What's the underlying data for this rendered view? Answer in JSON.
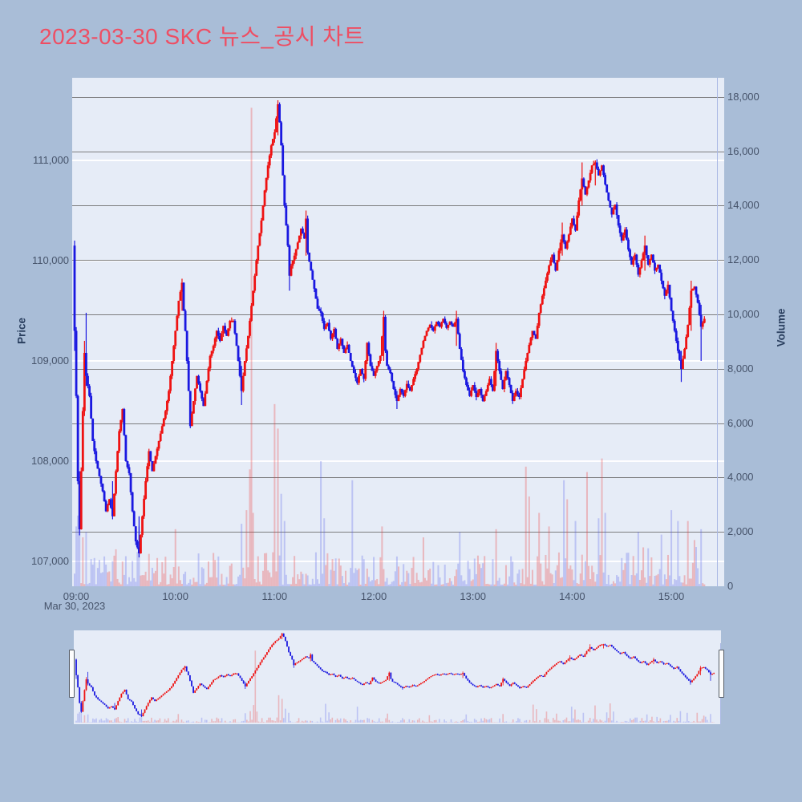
{
  "page": {
    "background_color": "#a9bdd7",
    "plot_background_color": "#e6ecf7",
    "title": "2023-03-30 SKC 뉴스_공시 차트",
    "title_color": "#ee4e63",
    "tick_label_color": "#46536a",
    "axis_title_color": "#2a3f5f"
  },
  "chart_data": {
    "type": "candlestick",
    "title": "2023-03-30 SKC 뉴스_공시 차트",
    "legend_position": "none",
    "grid": {
      "price_lines": "white",
      "volume_lines": "gray"
    },
    "price_axis": {
      "label": "Price",
      "ticks": [
        {
          "label": "111,000",
          "value": 111000
        },
        {
          "label": "110,000",
          "value": 110000
        },
        {
          "label": "109,000",
          "value": 109000
        },
        {
          "label": "108,000",
          "value": 108000
        },
        {
          "label": "107,000",
          "value": 107000
        }
      ],
      "range_shown": [
        106800,
        111840
      ]
    },
    "volume_axis": {
      "label": "Volume",
      "ticks": [
        {
          "label": "18,000",
          "value": 18000
        },
        {
          "label": "16,000",
          "value": 16000
        },
        {
          "label": "14,000",
          "value": 14000
        },
        {
          "label": "12,000",
          "value": 12000
        },
        {
          "label": "10,000",
          "value": 10000
        },
        {
          "label": "8,000",
          "value": 8000
        },
        {
          "label": "6,000",
          "value": 6000
        },
        {
          "label": "4,000",
          "value": 4000
        },
        {
          "label": "2,000",
          "value": 2000
        },
        {
          "label": "0",
          "value": 0
        }
      ],
      "range": [
        0,
        18000
      ]
    },
    "time_axis": {
      "date_label": "Mar 30, 2023",
      "ticks": [
        {
          "label": "09:00",
          "minute": 0
        },
        {
          "label": "10:00",
          "minute": 60
        },
        {
          "label": "11:00",
          "minute": 120
        },
        {
          "label": "12:00",
          "minute": 180
        },
        {
          "label": "13:00",
          "minute": 240
        },
        {
          "label": "14:00",
          "minute": 300
        },
        {
          "label": "15:00",
          "minute": 360
        }
      ],
      "minutes_total": 382
    },
    "colors": {
      "up_candle": "#ee1212",
      "down_candle": "#1a18e0",
      "up_volume": "rgba(238,60,60,0.30)",
      "down_volume": "rgba(80,90,235,0.28)",
      "grid_gray": "rgba(105,105,105,0.85)",
      "grid_white": "rgba(255,255,255,0.95)",
      "axis_line_light": "rgba(168,182,228,0.95)"
    },
    "open_price": 110150,
    "close_anchors": [
      [
        0,
        109300
      ],
      [
        1,
        108650
      ],
      [
        2,
        107800
      ],
      [
        3,
        107320
      ],
      [
        4,
        107900
      ],
      [
        5,
        108500
      ],
      [
        6,
        109080
      ],
      [
        7,
        108850
      ],
      [
        9,
        108650
      ],
      [
        11,
        108200
      ],
      [
        13,
        108000
      ],
      [
        15,
        107850
      ],
      [
        17,
        107700
      ],
      [
        19,
        107500
      ],
      [
        21,
        107620
      ],
      [
        23,
        107450
      ],
      [
        25,
        107900
      ],
      [
        27,
        108300
      ],
      [
        29,
        108520
      ],
      [
        31,
        108000
      ],
      [
        33,
        107880
      ],
      [
        35,
        107500
      ],
      [
        37,
        107200
      ],
      [
        39,
        107080
      ],
      [
        41,
        107450
      ],
      [
        43,
        107800
      ],
      [
        45,
        108100
      ],
      [
        47,
        107900
      ],
      [
        49,
        108050
      ],
      [
        51,
        108200
      ],
      [
        53,
        108350
      ],
      [
        55,
        108500
      ],
      [
        57,
        108700
      ],
      [
        59,
        109000
      ],
      [
        61,
        109300
      ],
      [
        63,
        109600
      ],
      [
        65,
        109780
      ],
      [
        66,
        109500
      ],
      [
        67,
        109300
      ],
      [
        68,
        109000
      ],
      [
        69,
        108700
      ],
      [
        70,
        108350
      ],
      [
        72,
        108600
      ],
      [
        74,
        108850
      ],
      [
        76,
        108700
      ],
      [
        78,
        108550
      ],
      [
        80,
        108800
      ],
      [
        82,
        109050
      ],
      [
        84,
        109150
      ],
      [
        86,
        109300
      ],
      [
        88,
        109200
      ],
      [
        90,
        109350
      ],
      [
        92,
        109250
      ],
      [
        94,
        109400
      ],
      [
        96,
        109400
      ],
      [
        98,
        109150
      ],
      [
        100,
        108850
      ],
      [
        101,
        108700
      ],
      [
        103,
        109000
      ],
      [
        105,
        109250
      ],
      [
        107,
        109550
      ],
      [
        109,
        109850
      ],
      [
        111,
        110150
      ],
      [
        113,
        110400
      ],
      [
        115,
        110700
      ],
      [
        117,
        110950
      ],
      [
        119,
        111150
      ],
      [
        121,
        111280
      ],
      [
        123,
        111560
      ],
      [
        124,
        111380
      ],
      [
        125,
        111150
      ],
      [
        126,
        110850
      ],
      [
        127,
        110550
      ],
      [
        129,
        110150
      ],
      [
        130,
        109850
      ],
      [
        131,
        109950
      ],
      [
        133,
        110050
      ],
      [
        135,
        110180
      ],
      [
        137,
        110320
      ],
      [
        139,
        110220
      ],
      [
        140,
        110420
      ],
      [
        141,
        110080
      ],
      [
        143,
        109900
      ],
      [
        145,
        109720
      ],
      [
        147,
        109520
      ],
      [
        149,
        109480
      ],
      [
        151,
        109320
      ],
      [
        153,
        109380
      ],
      [
        155,
        109220
      ],
      [
        157,
        109320
      ],
      [
        159,
        109120
      ],
      [
        161,
        109220
      ],
      [
        163,
        109080
      ],
      [
        165,
        109160
      ],
      [
        167,
        109000
      ],
      [
        169,
        108880
      ],
      [
        171,
        108780
      ],
      [
        173,
        108920
      ],
      [
        175,
        108820
      ],
      [
        177,
        109180
      ],
      [
        179,
        108950
      ],
      [
        181,
        108850
      ],
      [
        183,
        108950
      ],
      [
        185,
        109050
      ],
      [
        187,
        109440
      ],
      [
        188,
        109100
      ],
      [
        189,
        108950
      ],
      [
        191,
        108880
      ],
      [
        193,
        108720
      ],
      [
        195,
        108600
      ],
      [
        197,
        108720
      ],
      [
        199,
        108650
      ],
      [
        201,
        108770
      ],
      [
        203,
        108700
      ],
      [
        205,
        108820
      ],
      [
        207,
        108920
      ],
      [
        209,
        109060
      ],
      [
        211,
        109200
      ],
      [
        213,
        109300
      ],
      [
        215,
        109360
      ],
      [
        217,
        109300
      ],
      [
        219,
        109390
      ],
      [
        221,
        109340
      ],
      [
        223,
        109420
      ],
      [
        225,
        109330
      ],
      [
        227,
        109390
      ],
      [
        229,
        109340
      ],
      [
        231,
        109420
      ],
      [
        233,
        109120
      ],
      [
        235,
        108900
      ],
      [
        237,
        108760
      ],
      [
        239,
        108650
      ],
      [
        241,
        108760
      ],
      [
        243,
        108640
      ],
      [
        245,
        108720
      ],
      [
        247,
        108600
      ],
      [
        249,
        108700
      ],
      [
        251,
        108820
      ],
      [
        253,
        108700
      ],
      [
        255,
        109100
      ],
      [
        257,
        108900
      ],
      [
        259,
        108720
      ],
      [
        261,
        108900
      ],
      [
        263,
        108760
      ],
      [
        265,
        108600
      ],
      [
        267,
        108700
      ],
      [
        269,
        108640
      ],
      [
        271,
        108820
      ],
      [
        273,
        109000
      ],
      [
        275,
        109160
      ],
      [
        277,
        109300
      ],
      [
        279,
        109220
      ],
      [
        281,
        109480
      ],
      [
        283,
        109650
      ],
      [
        285,
        109800
      ],
      [
        287,
        109950
      ],
      [
        289,
        110060
      ],
      [
        291,
        109900
      ],
      [
        293,
        110100
      ],
      [
        295,
        110260
      ],
      [
        297,
        110120
      ],
      [
        299,
        110260
      ],
      [
        301,
        110420
      ],
      [
        303,
        110300
      ],
      [
        305,
        110600
      ],
      [
        307,
        110820
      ],
      [
        309,
        110660
      ],
      [
        311,
        110800
      ],
      [
        313,
        110950
      ],
      [
        315,
        110980
      ],
      [
        317,
        110850
      ],
      [
        319,
        110950
      ],
      [
        321,
        110760
      ],
      [
        323,
        110600
      ],
      [
        325,
        110460
      ],
      [
        327,
        110560
      ],
      [
        329,
        110350
      ],
      [
        331,
        110200
      ],
      [
        333,
        110310
      ],
      [
        335,
        110110
      ],
      [
        337,
        109960
      ],
      [
        339,
        110060
      ],
      [
        341,
        109860
      ],
      [
        343,
        110000
      ],
      [
        345,
        110150
      ],
      [
        347,
        109960
      ],
      [
        349,
        110060
      ],
      [
        351,
        109900
      ],
      [
        353,
        109960
      ],
      [
        355,
        109800
      ],
      [
        357,
        109650
      ],
      [
        359,
        109760
      ],
      [
        361,
        109500
      ],
      [
        363,
        109300
      ],
      [
        365,
        109100
      ],
      [
        367,
        108920
      ],
      [
        369,
        109120
      ],
      [
        371,
        109360
      ],
      [
        373,
        109700
      ],
      [
        375,
        109740
      ],
      [
        377,
        109580
      ],
      [
        379,
        109340
      ],
      [
        381,
        109420
      ]
    ],
    "wick_overrides": [
      [
        0,
        110200,
        109100
      ],
      [
        3,
        107900,
        107260
      ],
      [
        6,
        109200,
        108450
      ],
      [
        7,
        109480,
        108750
      ],
      [
        23,
        107800,
        107420
      ],
      [
        39,
        107450,
        107040
      ],
      [
        65,
        109820,
        109500
      ],
      [
        101,
        108950,
        108560
      ],
      [
        123,
        111600,
        111250
      ],
      [
        130,
        110150,
        109700
      ],
      [
        140,
        110500,
        110050
      ],
      [
        187,
        109500,
        109000
      ],
      [
        195,
        108700,
        108520
      ],
      [
        231,
        109500,
        109150
      ],
      [
        255,
        109180,
        108750
      ],
      [
        295,
        110380,
        110050
      ],
      [
        307,
        110980,
        110550
      ],
      [
        315,
        111000,
        110750
      ],
      [
        345,
        110250,
        109900
      ],
      [
        367,
        109100,
        108790
      ],
      [
        373,
        109800,
        109300
      ],
      [
        379,
        109560,
        109000
      ]
    ],
    "volume_spikes": [
      [
        1,
        2200
      ],
      [
        2,
        2600
      ],
      [
        3,
        2400
      ],
      [
        5,
        1800
      ],
      [
        7,
        2000
      ],
      [
        39,
        2200
      ],
      [
        61,
        2100
      ],
      [
        101,
        2300
      ],
      [
        104,
        2800
      ],
      [
        106,
        4300
      ],
      [
        107,
        17600
      ],
      [
        108,
        2700
      ],
      [
        121,
        6700
      ],
      [
        123,
        5800
      ],
      [
        125,
        3400
      ],
      [
        127,
        2400
      ],
      [
        149,
        4600
      ],
      [
        151,
        2500
      ],
      [
        168,
        3900
      ],
      [
        186,
        2200
      ],
      [
        211,
        1800
      ],
      [
        233,
        2000
      ],
      [
        255,
        2100
      ],
      [
        273,
        4400
      ],
      [
        275,
        3300
      ],
      [
        281,
        2700
      ],
      [
        287,
        2200
      ],
      [
        296,
        3900
      ],
      [
        298,
        3200
      ],
      [
        303,
        2400
      ],
      [
        310,
        4200
      ],
      [
        317,
        2500
      ],
      [
        319,
        4700
      ],
      [
        321,
        2700
      ],
      [
        341,
        2000
      ],
      [
        355,
        1900
      ],
      [
        361,
        2800
      ],
      [
        365,
        2400
      ],
      [
        371,
        2400
      ],
      [
        375,
        1700
      ],
      [
        379,
        2100
      ]
    ],
    "navigator": {
      "present": true,
      "handles": 2
    }
  }
}
